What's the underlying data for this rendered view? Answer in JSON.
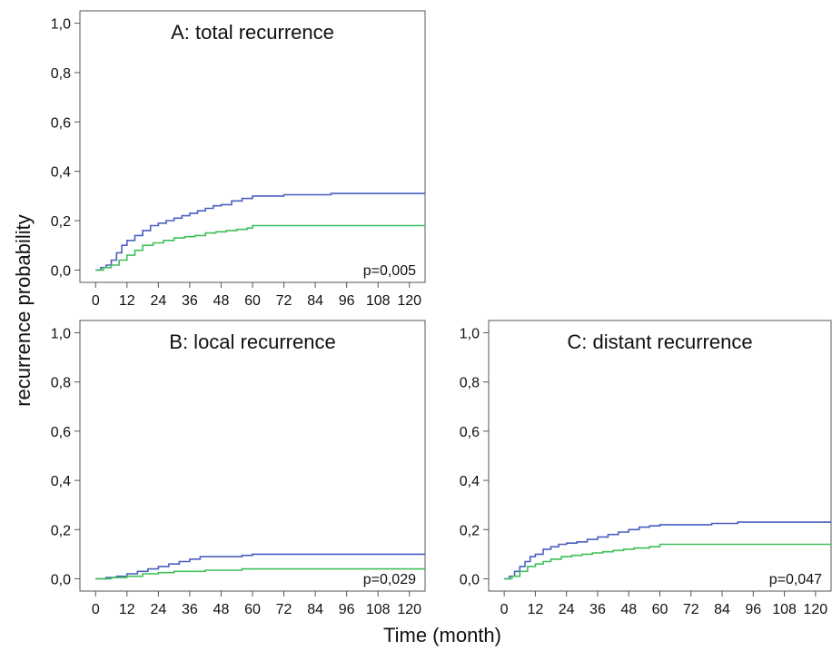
{
  "ylabel": "recurrence probability",
  "xlabel": "Time (month)",
  "colors": {
    "blue": "#4a5fc0",
    "green": "#3fbf5a"
  },
  "chart_data": [
    {
      "id": "A",
      "type": "line",
      "title": "A: total recurrence",
      "p_value": "p=0,005",
      "xlim": [
        -6,
        126
      ],
      "ylim": [
        -0.05,
        1.05
      ],
      "xticks": [
        0,
        12,
        24,
        36,
        48,
        60,
        72,
        84,
        96,
        108,
        120
      ],
      "xtick_labels": [
        "0",
        "12",
        "24",
        "36",
        "48",
        "60",
        "72",
        "84",
        "96",
        "108",
        "120"
      ],
      "yticks": [
        0,
        0.2,
        0.4,
        0.6,
        0.8,
        1.0
      ],
      "ytick_labels": [
        "0,0",
        "0,2",
        "0,4",
        "0,6",
        "0,8",
        "1,0"
      ],
      "series": [
        {
          "color": "#4a5fc0",
          "x": [
            0,
            2,
            4,
            6,
            8,
            10,
            12,
            15,
            18,
            21,
            24,
            27,
            30,
            33,
            36,
            39,
            42,
            45,
            48,
            52,
            56,
            60,
            66,
            72,
            80,
            90,
            100,
            110,
            126
          ],
          "y": [
            0,
            0.01,
            0.02,
            0.04,
            0.07,
            0.1,
            0.12,
            0.14,
            0.16,
            0.18,
            0.19,
            0.2,
            0.21,
            0.22,
            0.23,
            0.24,
            0.25,
            0.26,
            0.265,
            0.28,
            0.29,
            0.3,
            0.3,
            0.305,
            0.305,
            0.31,
            0.31,
            0.31,
            0.31
          ]
        },
        {
          "color": "#3fbf5a",
          "x": [
            0,
            3,
            6,
            9,
            12,
            15,
            18,
            22,
            26,
            30,
            34,
            38,
            42,
            46,
            50,
            54,
            58,
            60,
            70,
            80,
            100,
            126
          ],
          "y": [
            0,
            0.01,
            0.02,
            0.04,
            0.06,
            0.08,
            0.1,
            0.11,
            0.12,
            0.13,
            0.135,
            0.14,
            0.15,
            0.155,
            0.16,
            0.165,
            0.17,
            0.18,
            0.18,
            0.18,
            0.18,
            0.18
          ]
        }
      ]
    },
    {
      "id": "B",
      "type": "line",
      "title": "B: local recurrence",
      "p_value": "p=0,029",
      "xlim": [
        -6,
        126
      ],
      "ylim": [
        -0.05,
        1.05
      ],
      "xticks": [
        0,
        12,
        24,
        36,
        48,
        60,
        72,
        84,
        96,
        108,
        120
      ],
      "xtick_labels": [
        "0",
        "12",
        "24",
        "36",
        "48",
        "60",
        "72",
        "84",
        "96",
        "108",
        "120"
      ],
      "yticks": [
        0,
        0.2,
        0.4,
        0.6,
        0.8,
        1.0
      ],
      "ytick_labels": [
        "0,0",
        "0,2",
        "0,4",
        "0,6",
        "0,8",
        "1,0"
      ],
      "series": [
        {
          "color": "#4a5fc0",
          "x": [
            0,
            4,
            8,
            12,
            16,
            20,
            24,
            28,
            32,
            36,
            40,
            48,
            56,
            60,
            80,
            100,
            126
          ],
          "y": [
            0,
            0.005,
            0.01,
            0.02,
            0.03,
            0.04,
            0.05,
            0.06,
            0.07,
            0.08,
            0.09,
            0.09,
            0.095,
            0.1,
            0.1,
            0.1,
            0.1
          ]
        },
        {
          "color": "#3fbf5a",
          "x": [
            0,
            6,
            12,
            18,
            24,
            30,
            36,
            42,
            48,
            56,
            60,
            80,
            100,
            126
          ],
          "y": [
            0,
            0.005,
            0.01,
            0.02,
            0.025,
            0.03,
            0.03,
            0.035,
            0.035,
            0.04,
            0.04,
            0.04,
            0.04,
            0.04
          ]
        }
      ]
    },
    {
      "id": "C",
      "type": "line",
      "title": "C: distant recurrence",
      "p_value": "p=0,047",
      "xlim": [
        -6,
        126
      ],
      "ylim": [
        -0.05,
        1.05
      ],
      "xticks": [
        0,
        12,
        24,
        36,
        48,
        60,
        72,
        84,
        96,
        108,
        120
      ],
      "xtick_labels": [
        "0",
        "12",
        "24",
        "36",
        "48",
        "60",
        "72",
        "84",
        "96",
        "108",
        "120"
      ],
      "yticks": [
        0,
        0.2,
        0.4,
        0.6,
        0.8,
        1.0
      ],
      "ytick_labels": [
        "0,0",
        "0,2",
        "0,4",
        "0,6",
        "0,8",
        "1,0"
      ],
      "series": [
        {
          "color": "#4a5fc0",
          "x": [
            0,
            2,
            4,
            6,
            8,
            10,
            12,
            15,
            18,
            21,
            24,
            28,
            32,
            36,
            40,
            44,
            48,
            52,
            56,
            60,
            70,
            80,
            90,
            110,
            126
          ],
          "y": [
            0,
            0.01,
            0.03,
            0.05,
            0.07,
            0.09,
            0.1,
            0.12,
            0.13,
            0.14,
            0.145,
            0.15,
            0.16,
            0.17,
            0.18,
            0.19,
            0.2,
            0.21,
            0.215,
            0.22,
            0.22,
            0.225,
            0.23,
            0.23,
            0.23
          ]
        },
        {
          "color": "#3fbf5a",
          "x": [
            0,
            3,
            6,
            9,
            12,
            15,
            18,
            22,
            26,
            30,
            34,
            38,
            42,
            46,
            50,
            56,
            60,
            80,
            100,
            126
          ],
          "y": [
            0,
            0.01,
            0.03,
            0.05,
            0.06,
            0.07,
            0.08,
            0.09,
            0.095,
            0.1,
            0.105,
            0.11,
            0.115,
            0.12,
            0.125,
            0.13,
            0.14,
            0.14,
            0.14,
            0.14
          ]
        }
      ]
    }
  ]
}
